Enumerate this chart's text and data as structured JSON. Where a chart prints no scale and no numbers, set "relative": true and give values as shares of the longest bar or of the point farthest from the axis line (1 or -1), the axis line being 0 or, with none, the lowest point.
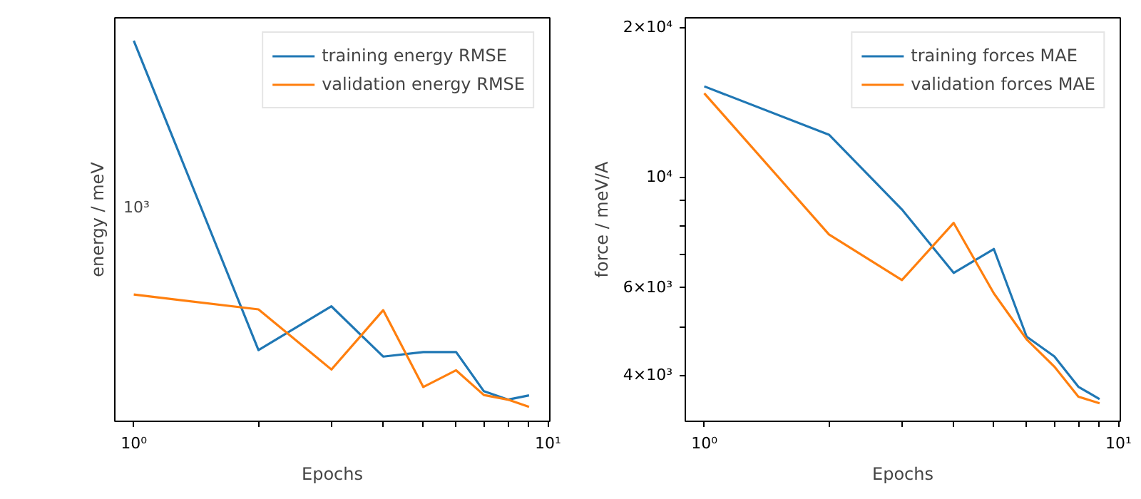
{
  "chart_data": [
    {
      "type": "line",
      "xlabel": "Epochs",
      "ylabel": "energy / meV",
      "log": "x",
      "grid": false,
      "legend": "top right",
      "x": [
        1,
        2,
        3,
        4,
        5,
        6,
        7,
        8,
        9
      ],
      "relative": true,
      "annotations": [
        "10³"
      ],
      "xlim": [
        0.9,
        10.1
      ],
      "xticks": [
        {
          "value": 1,
          "label": "10⁰"
        },
        {
          "value": 2,
          "label": null
        },
        {
          "value": 3,
          "label": null
        },
        {
          "value": 4,
          "label": null
        },
        {
          "value": 5,
          "label": null
        },
        {
          "value": 6,
          "label": null
        },
        {
          "value": 7,
          "label": null
        },
        {
          "value": 8,
          "label": null
        },
        {
          "value": 9,
          "label": null
        },
        {
          "value": 10,
          "label": "10¹"
        }
      ],
      "series": [
        {
          "name": "training energy RMSE",
          "color": "#1f77b4",
          "values": [
            1,
            0.187,
            0.302,
            0.17,
            0.182,
            0.182,
            0.079,
            0.057,
            0.068
          ]
        },
        {
          "name": "validation energy RMSE",
          "color": "#ff7f0e",
          "values": [
            0.333,
            0.294,
            0.136,
            0.292,
            0.09,
            0.134,
            0.069,
            0.057,
            0.038
          ]
        }
      ]
    },
    {
      "type": "line",
      "xlabel": "Epochs",
      "ylabel": "force / meV/A",
      "log": "xy",
      "grid": false,
      "legend": "top right",
      "x": [
        1,
        2,
        3,
        4,
        5,
        6,
        7,
        8,
        9
      ],
      "xlim": [
        0.9,
        10.1
      ],
      "ylim": [
        3230,
        20900
      ],
      "xticks": [
        {
          "value": 1,
          "label": "10⁰"
        },
        {
          "value": 2,
          "label": null
        },
        {
          "value": 3,
          "label": null
        },
        {
          "value": 4,
          "label": null
        },
        {
          "value": 5,
          "label": null
        },
        {
          "value": 6,
          "label": null
        },
        {
          "value": 7,
          "label": null
        },
        {
          "value": 8,
          "label": null
        },
        {
          "value": 9,
          "label": null
        },
        {
          "value": 10,
          "label": "10¹"
        }
      ],
      "yticks": [
        {
          "value": 4000,
          "label": "4×10³"
        },
        {
          "value": 5000,
          "label": null
        },
        {
          "value": 6000,
          "label": "6×10³"
        },
        {
          "value": 7000,
          "label": null
        },
        {
          "value": 8000,
          "label": null
        },
        {
          "value": 9000,
          "label": null
        },
        {
          "value": 10000,
          "label": "10⁴"
        },
        {
          "value": 20000,
          "label": "2×10⁴"
        }
      ],
      "series": [
        {
          "name": "training forces MAE",
          "color": "#1f77b4",
          "values": [
            15220,
            12170,
            8610,
            6420,
            7170,
            4780,
            4360,
            3790,
            3580
          ]
        },
        {
          "name": "validation forces MAE",
          "color": "#ff7f0e",
          "values": [
            14740,
            7670,
            6210,
            8090,
            5840,
            4720,
            4160,
            3620,
            3510
          ]
        }
      ]
    }
  ]
}
